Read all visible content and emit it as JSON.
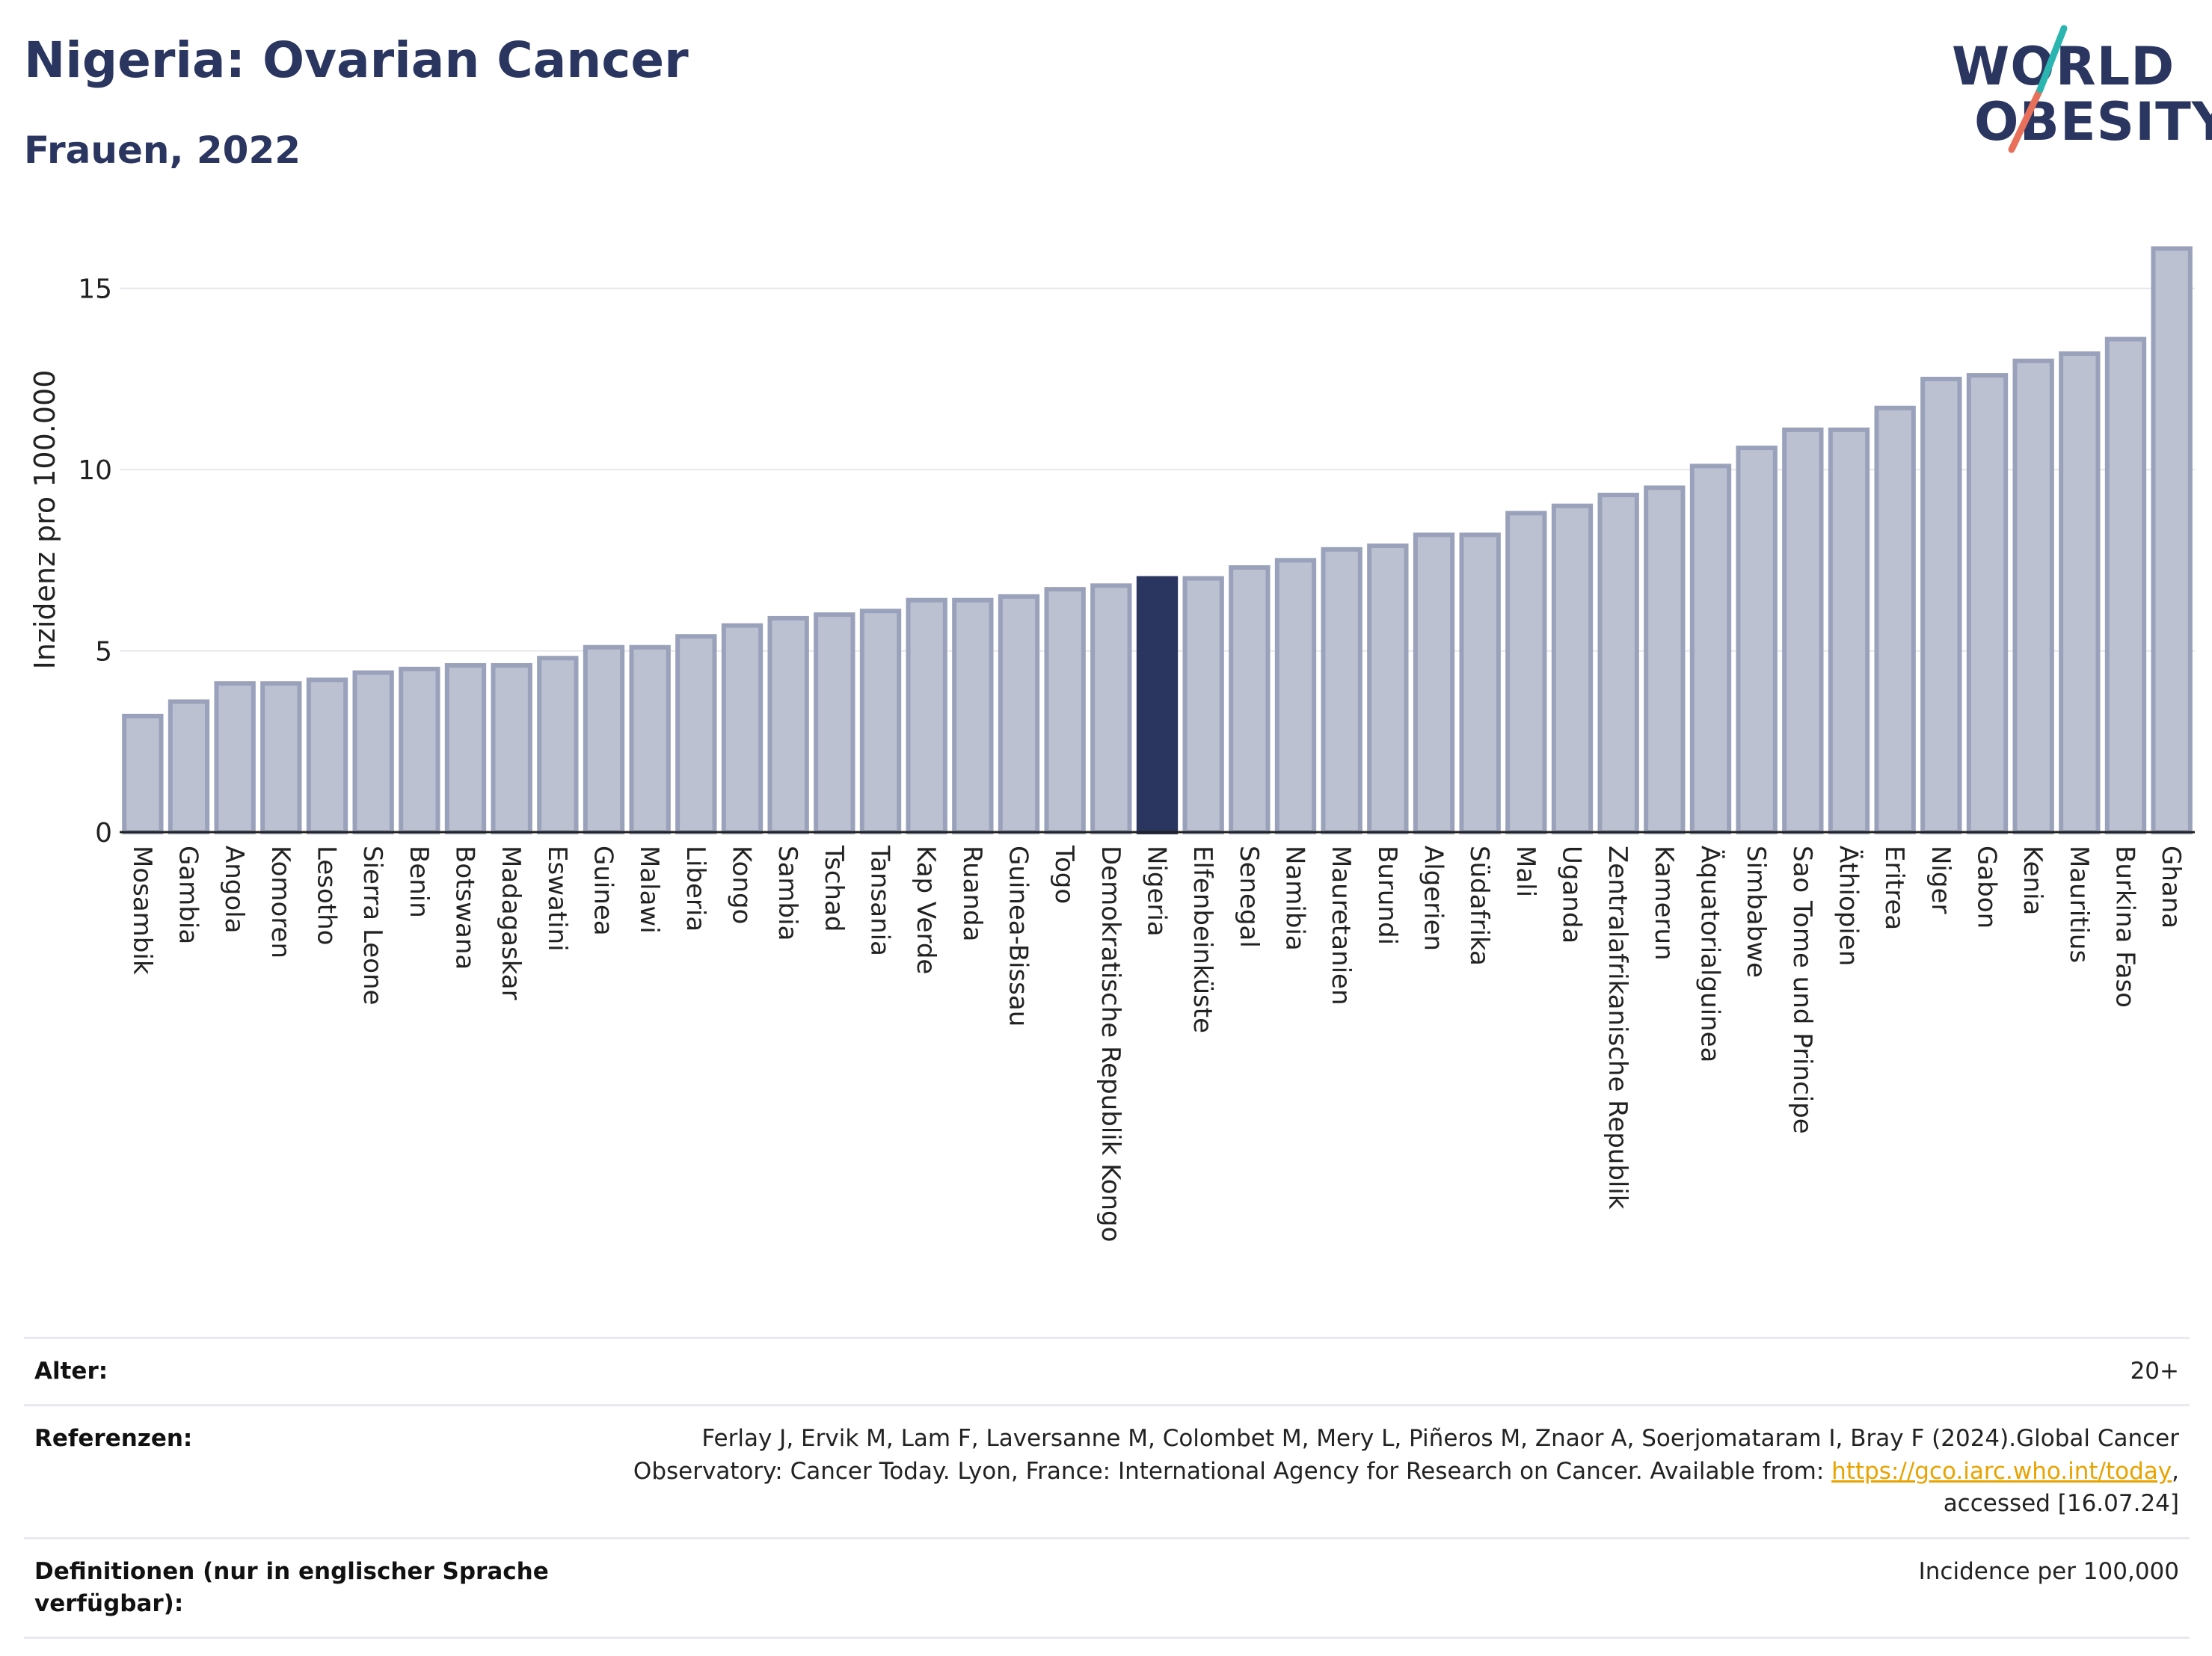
{
  "title": "Nigeria: Ovarian Cancer",
  "subtitle": "Frauen, 2022",
  "logo": {
    "line1": "WORLD",
    "line2": "OBESITY"
  },
  "colors": {
    "bar": "#bcc1d2",
    "bar_border": "#9aa1ba",
    "highlight": "#2a3560",
    "grid": "#e6e7ec",
    "text": "#222222",
    "link": "#e8a300"
  },
  "chart_data": {
    "type": "bar",
    "ylabel": "Inzidenz pro 100.000",
    "xlabel": "",
    "ylim": [
      0,
      16.5
    ],
    "yticks": [
      0,
      5,
      10,
      15
    ],
    "grid": true,
    "highlight": "Nigeria",
    "categories": [
      "Mosambik",
      "Gambia",
      "Angola",
      "Komoren",
      "Lesotho",
      "Sierra Leone",
      "Benin",
      "Botswana",
      "Madagaskar",
      "Eswatini",
      "Guinea",
      "Malawi",
      "Liberia",
      "Kongo",
      "Sambia",
      "Tschad",
      "Tansania",
      "Kap Verde",
      "Ruanda",
      "Guinea-Bissau",
      "Togo",
      "Demokratische Republik Kongo",
      "Nigeria",
      "Elfenbeinküste",
      "Senegal",
      "Namibia",
      "Mauretanien",
      "Burundi",
      "Algerien",
      "Südafrika",
      "Mali",
      "Uganda",
      "Zentralafrikanische Republik",
      "Kamerun",
      "Äquatorialguinea",
      "Simbabwe",
      "Sao Tome und Principe",
      "Äthiopien",
      "Eritrea",
      "Niger",
      "Gabon",
      "Kenia",
      "Mauritius",
      "Burkina Faso",
      "Ghana"
    ],
    "values": [
      3.2,
      3.6,
      4.1,
      4.1,
      4.2,
      4.4,
      4.5,
      4.6,
      4.6,
      4.8,
      5.1,
      5.1,
      5.4,
      5.7,
      5.9,
      6.0,
      6.1,
      6.4,
      6.4,
      6.5,
      6.7,
      6.8,
      7.0,
      7.0,
      7.3,
      7.5,
      7.8,
      7.9,
      8.2,
      8.2,
      8.8,
      9.0,
      9.3,
      9.5,
      10.1,
      10.6,
      11.1,
      11.1,
      11.7,
      12.5,
      12.6,
      13.0,
      13.2,
      13.6,
      16.1
    ]
  },
  "meta": {
    "age_label": "Alter:",
    "age_value": "20+",
    "ref_label": "Referenzen:",
    "ref_text": "Ferlay J, Ervik M, Lam F, Laversanne M, Colombet M, Mery L, Piñeros M, Znaor A, Soerjomataram I, Bray F (2024).Global Cancer Observatory: Cancer Today. Lyon, France: International Agency for Research on Cancer. Available from: ",
    "ref_link": "https://gco.iarc.who.int/today",
    "ref_tail": ", accessed [16.07.24]",
    "def_label": "Definitionen (nur in englischer Sprache verfügbar):",
    "def_value": "Incidence per 100,000"
  }
}
